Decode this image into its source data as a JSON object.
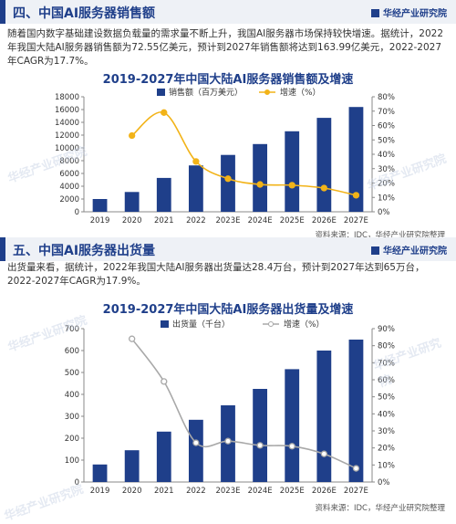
{
  "section1": {
    "heading": "四、中国AI服务器销售额",
    "brand": "华经产业研究院",
    "para": "随着国内数字基础建设数据负载量的需求量不断上升，我国AI服务器市场保持较快增速。据统计，2022年我国大陆AI服务器销售额为72.55亿美元，预计到2027年销售额将达到163.99亿美元，2022-2027年CAGR为17.7%。",
    "source": "资料来源：IDC，华经产业研究院整理"
  },
  "section2": {
    "heading": "五、中国AI服务器出货量",
    "brand": "华经产业研究院",
    "para": "出货量来看，据统计，2022年我国大陆AI服务器出货量达28.4万台，预计到2027年达到65万台，2022-2027年CAGR为17.9%。",
    "source": "资料来源：IDC，华经产业研究院整理"
  },
  "watermark": "华经产业研究院",
  "chart_data": [
    {
      "type": "bar",
      "title": "2019-2027年中国大陆AI服务器销售额及增速",
      "categories": [
        "2019",
        "2020",
        "2021",
        "2022",
        "2023E",
        "2024E",
        "2025E",
        "2026E",
        "2027E"
      ],
      "series": [
        {
          "name": "销售额（百万美元）",
          "kind": "bar",
          "axis": "left",
          "values": [
            2000,
            3100,
            5300,
            7255,
            8900,
            10600,
            12600,
            14700,
            16399
          ],
          "color": "#1f3f8a"
        },
        {
          "name": "增速（%）",
          "kind": "line",
          "axis": "right",
          "values": [
            null,
            53,
            69,
            35,
            23,
            19,
            18.5,
            16.5,
            11.5
          ],
          "color": "#f2b318"
        }
      ],
      "ylim": [
        0,
        18000
      ],
      "y_ticks": [
        0,
        2000,
        4000,
        6000,
        8000,
        10000,
        12000,
        14000,
        16000,
        18000
      ],
      "y2lim": [
        0,
        80
      ],
      "y2_ticks": [
        "0%",
        "10%",
        "20%",
        "30%",
        "40%",
        "50%",
        "60%",
        "70%",
        "80%"
      ],
      "legend": "top"
    },
    {
      "type": "bar",
      "title": "2019-2027年中国大陆AI服务器出货量及增速",
      "categories": [
        "2019",
        "2020",
        "2021",
        "2022",
        "2023E",
        "2024E",
        "2025E",
        "2026E",
        "2027E"
      ],
      "series": [
        {
          "name": "出货量（千台）",
          "kind": "bar",
          "axis": "left",
          "values": [
            80,
            145,
            230,
            284,
            350,
            425,
            515,
            600,
            650
          ],
          "color": "#1f3f8a"
        },
        {
          "name": "增速（%）",
          "kind": "line",
          "axis": "right",
          "values": [
            null,
            84,
            59,
            23,
            24,
            21.5,
            21,
            16.5,
            8
          ],
          "color": "#a8a8a8"
        }
      ],
      "ylim": [
        0,
        700
      ],
      "y_ticks": [
        0,
        100,
        200,
        300,
        400,
        500,
        600,
        700
      ],
      "y2lim": [
        0,
        90
      ],
      "y2_ticks": [
        "0%",
        "10%",
        "20%",
        "30%",
        "40%",
        "50%",
        "60%",
        "70%",
        "80%",
        "90%"
      ],
      "legend": "top"
    }
  ]
}
